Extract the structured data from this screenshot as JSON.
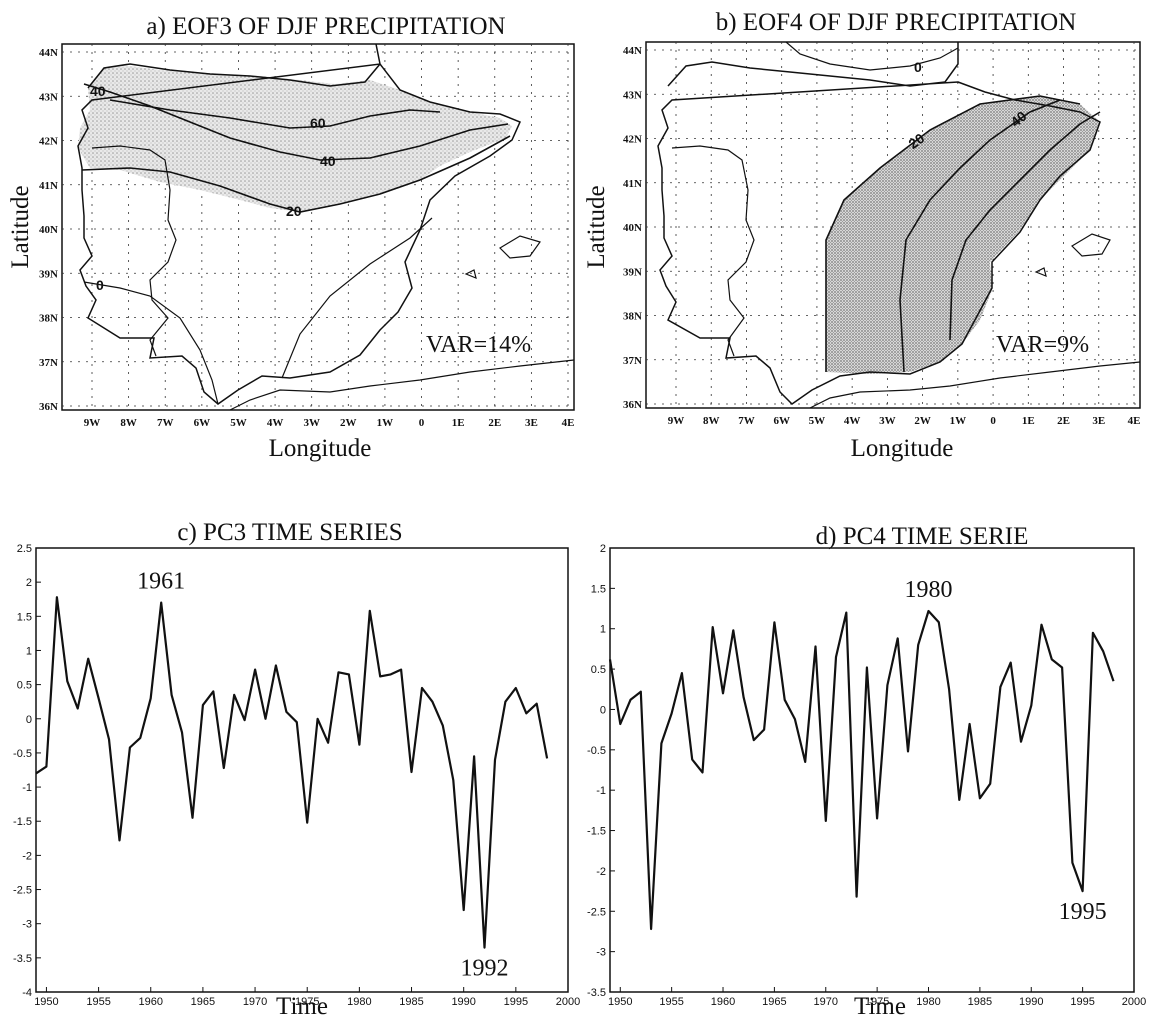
{
  "maps": [
    {
      "title": "a) EOF3 OF DJF PRECIPITATION",
      "xlabel": "Longitude",
      "ylabel": "Latitude",
      "variance": "VAR=14%",
      "lat_ticks": [
        "44N",
        "43N",
        "42N",
        "41N",
        "40N",
        "39N",
        "38N",
        "37N",
        "36N"
      ],
      "lon_ticks": [
        "9W",
        "8W",
        "7W",
        "6W",
        "5W",
        "4W",
        "3W",
        "2W",
        "1W",
        "0",
        "1E",
        "2E",
        "3E",
        "4E"
      ],
      "contour_labels": [
        "40",
        "60",
        "40",
        "20",
        "0"
      ]
    },
    {
      "title": "b) EOF4 OF DJF PRECIPITATION",
      "xlabel": "Longitude",
      "ylabel": "Latitude",
      "variance": "VAR=9%",
      "lat_ticks": [
        "44N",
        "43N",
        "42N",
        "41N",
        "40N",
        "39N",
        "38N",
        "37N",
        "36N"
      ],
      "lon_ticks": [
        "9W",
        "8W",
        "7W",
        "6W",
        "5W",
        "4W",
        "3W",
        "2W",
        "1W",
        "0",
        "1E",
        "2E",
        "3E",
        "4E"
      ],
      "contour_labels": [
        "0",
        "20",
        "40"
      ]
    }
  ],
  "chart_data": [
    {
      "type": "line",
      "title": "c) PC3 TIME SERIES",
      "xlabel": "Time",
      "ylabel": "",
      "xlim": [
        1949,
        2000
      ],
      "ylim": [
        -4,
        2.5
      ],
      "x_ticks": [
        1950,
        1955,
        1960,
        1965,
        1970,
        1975,
        1980,
        1985,
        1990,
        1995,
        2000
      ],
      "y_ticks": [
        "2.5",
        "2",
        "1.5",
        "1",
        "0.5",
        "0",
        "-0.5",
        "-1",
        "-1.5",
        "-2",
        "-2.5",
        "-3",
        "-3.5",
        "-4"
      ],
      "annotations": [
        {
          "text": "1961",
          "x": 1961,
          "y": 1.7
        },
        {
          "text": "1992",
          "x": 1992,
          "y": -3.35
        }
      ],
      "series": [
        {
          "x": [
            1949,
            1950,
            1951,
            1952,
            1953,
            1954,
            1955,
            1956,
            1957,
            1958,
            1959,
            1960,
            1961,
            1962,
            1963,
            1964,
            1965,
            1966,
            1967,
            1968,
            1969,
            1970,
            1971,
            1972,
            1973,
            1974,
            1975,
            1976,
            1977,
            1978,
            1979,
            1980,
            1981,
            1982,
            1983,
            1984,
            1985,
            1986,
            1987,
            1988,
            1989,
            1990,
            1991,
            1992,
            1993,
            1994,
            1995,
            1996,
            1997,
            1998
          ],
          "values": [
            -0.8,
            -0.7,
            1.78,
            0.55,
            0.15,
            0.88,
            0.3,
            -0.3,
            -1.78,
            -0.42,
            -0.28,
            0.3,
            1.7,
            0.35,
            -0.2,
            -1.45,
            0.2,
            0.4,
            -0.72,
            0.35,
            -0.02,
            0.72,
            0.0,
            0.78,
            0.1,
            -0.05,
            -1.52,
            0.0,
            -0.35,
            0.68,
            0.65,
            -0.38,
            1.58,
            0.62,
            0.65,
            0.72,
            -0.78,
            0.45,
            0.25,
            -0.1,
            -0.9,
            -2.8,
            -0.55,
            -3.35,
            -0.6,
            0.25,
            0.45,
            0.08,
            0.22,
            -0.58
          ]
        }
      ]
    },
    {
      "type": "line",
      "title": "d) PC4 TIME SERIE",
      "xlabel": "Time",
      "ylabel": "",
      "xlim": [
        1949,
        2000
      ],
      "ylim": [
        -3.5,
        2
      ],
      "x_ticks": [
        1950,
        1955,
        1960,
        1965,
        1970,
        1975,
        1980,
        1985,
        1990,
        1995,
        2000
      ],
      "y_ticks": [
        "2",
        "1.5",
        "1",
        "0.5",
        "0",
        "-0.5",
        "-1",
        "-1.5",
        "-2",
        "-2.5",
        "-3",
        "-3.5"
      ],
      "annotations": [
        {
          "text": "1980",
          "x": 1980,
          "y": 1.22
        },
        {
          "text": "1995",
          "x": 1995,
          "y": -2.25
        }
      ],
      "series": [
        {
          "x": [
            1949,
            1950,
            1951,
            1952,
            1953,
            1954,
            1955,
            1956,
            1957,
            1958,
            1959,
            1960,
            1961,
            1962,
            1963,
            1964,
            1965,
            1966,
            1967,
            1968,
            1969,
            1970,
            1971,
            1972,
            1973,
            1974,
            1975,
            1976,
            1977,
            1978,
            1979,
            1980,
            1981,
            1982,
            1983,
            1984,
            1985,
            1986,
            1987,
            1988,
            1989,
            1990,
            1991,
            1992,
            1993,
            1994,
            1995,
            1996,
            1997,
            1998
          ],
          "values": [
            0.62,
            -0.18,
            0.12,
            0.22,
            -2.72,
            -0.42,
            -0.05,
            0.45,
            -0.62,
            -0.78,
            1.02,
            0.2,
            0.98,
            0.15,
            -0.38,
            -0.25,
            1.08,
            0.12,
            -0.12,
            -0.65,
            0.78,
            -1.38,
            0.65,
            1.2,
            -2.32,
            0.52,
            -1.35,
            0.3,
            0.88,
            -0.52,
            0.8,
            1.22,
            1.08,
            0.25,
            -1.12,
            -0.18,
            -1.1,
            -0.92,
            0.28,
            0.58,
            -0.4,
            0.05,
            1.05,
            0.62,
            0.52,
            -1.9,
            -2.25,
            0.95,
            0.72,
            0.35
          ]
        }
      ]
    }
  ]
}
